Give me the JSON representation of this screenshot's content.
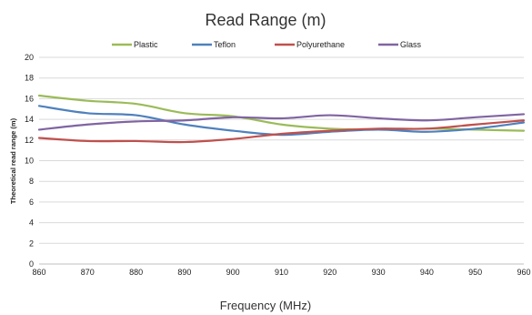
{
  "chart_data": {
    "type": "line",
    "title": "Read Range (m)",
    "xlabel": "Frequency (MHz)",
    "ylabel": "Theoretical read range (m)",
    "x": [
      860,
      870,
      880,
      890,
      900,
      910,
      920,
      930,
      940,
      950,
      960
    ],
    "xlim": [
      860,
      960
    ],
    "ylim": [
      0,
      20
    ],
    "yticks": [
      0,
      2,
      4,
      6,
      8,
      10,
      12,
      14,
      16,
      18,
      20
    ],
    "grid": true,
    "legend_position": "top",
    "series": [
      {
        "name": "Plastic",
        "color": "#9bbb59",
        "values": [
          16.3,
          15.8,
          15.5,
          14.6,
          14.3,
          13.5,
          13.1,
          13.0,
          13.1,
          13.0,
          12.9
        ]
      },
      {
        "name": "Teflon",
        "color": "#4f81bd",
        "values": [
          15.3,
          14.6,
          14.4,
          13.5,
          12.9,
          12.5,
          12.8,
          13.0,
          12.8,
          13.1,
          13.7
        ]
      },
      {
        "name": "Polyurethane",
        "color": "#c0504d",
        "values": [
          12.2,
          11.9,
          11.9,
          11.8,
          12.1,
          12.6,
          12.9,
          13.1,
          13.1,
          13.5,
          13.9
        ]
      },
      {
        "name": "Glass",
        "color": "#8064a2",
        "values": [
          13.0,
          13.5,
          13.8,
          13.9,
          14.2,
          14.1,
          14.4,
          14.1,
          13.9,
          14.2,
          14.5
        ]
      }
    ]
  }
}
